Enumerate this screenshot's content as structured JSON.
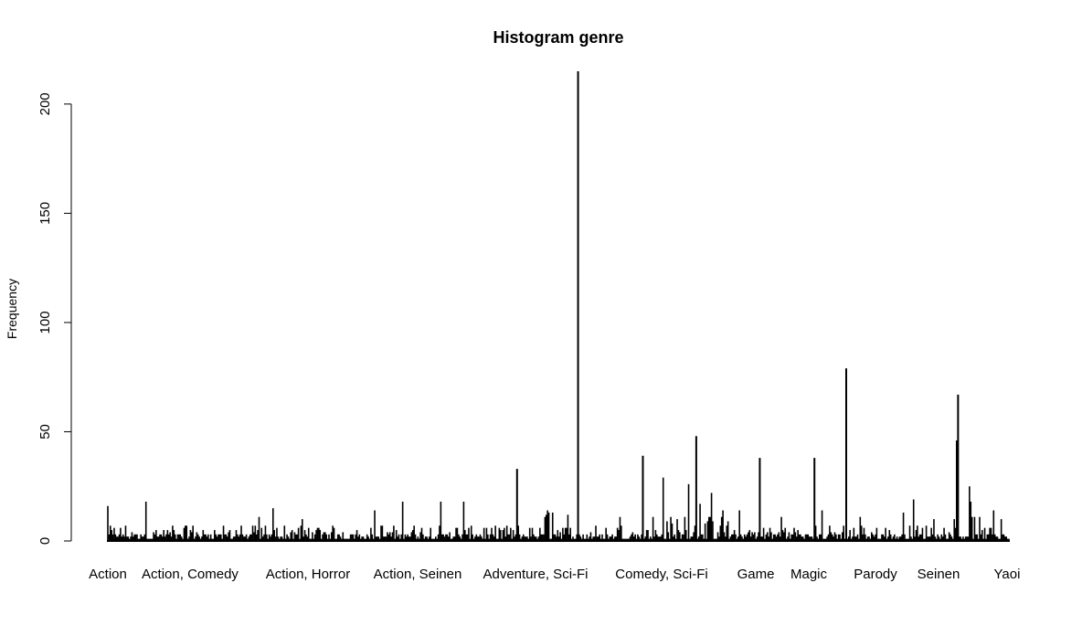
{
  "chart_data": {
    "type": "bar",
    "title": "Histogram genre",
    "xlabel": "",
    "ylabel": "Frequency",
    "ylim": [
      0,
      215
    ],
    "y_ticks": [
      0,
      50,
      100,
      150,
      200
    ],
    "grid": false,
    "x_tick_labels": [
      "Action",
      "Action, Comedy",
      "Action, Horror",
      "Action, Seinen",
      "Adventure, Sci-Fi",
      "Comedy, Sci-Fi",
      "Game",
      "Magic",
      "Parody",
      "Seinen",
      "Yaoi"
    ],
    "n_categories": 710,
    "notable_bars": [
      {
        "index": 0,
        "value": 16
      },
      {
        "index": 30,
        "value": 18
      },
      {
        "index": 119,
        "value": 11
      },
      {
        "index": 130,
        "value": 15
      },
      {
        "index": 153,
        "value": 10
      },
      {
        "index": 210,
        "value": 14
      },
      {
        "index": 232,
        "value": 18
      },
      {
        "index": 262,
        "value": 18
      },
      {
        "index": 280,
        "value": 18
      },
      {
        "index": 322,
        "value": 33
      },
      {
        "index": 350,
        "value": 13
      },
      {
        "index": 362,
        "value": 12
      },
      {
        "index": 346,
        "value": 14
      },
      {
        "index": 347,
        "value": 13
      },
      {
        "index": 345,
        "value": 12
      },
      {
        "index": 344,
        "value": 11
      },
      {
        "index": 370,
        "value": 215
      },
      {
        "index": 403,
        "value": 11
      },
      {
        "index": 421,
        "value": 39
      },
      {
        "index": 437,
        "value": 29
      },
      {
        "index": 457,
        "value": 26
      },
      {
        "index": 463,
        "value": 48
      },
      {
        "index": 466,
        "value": 17
      },
      {
        "index": 475,
        "value": 22
      },
      {
        "index": 484,
        "value": 14
      },
      {
        "index": 497,
        "value": 14
      },
      {
        "index": 513,
        "value": 38
      },
      {
        "index": 530,
        "value": 11
      },
      {
        "index": 556,
        "value": 38
      },
      {
        "index": 562,
        "value": 14
      },
      {
        "index": 581,
        "value": 79
      },
      {
        "index": 592,
        "value": 11
      },
      {
        "index": 626,
        "value": 13
      },
      {
        "index": 634,
        "value": 19
      },
      {
        "index": 650,
        "value": 10
      },
      {
        "index": 668,
        "value": 46
      },
      {
        "index": 669,
        "value": 67
      },
      {
        "index": 678,
        "value": 25
      },
      {
        "index": 679,
        "value": 18
      },
      {
        "index": 680,
        "value": 11
      },
      {
        "index": 697,
        "value": 14
      },
      {
        "index": 703,
        "value": 10
      }
    ],
    "bar_color": "#000000"
  }
}
